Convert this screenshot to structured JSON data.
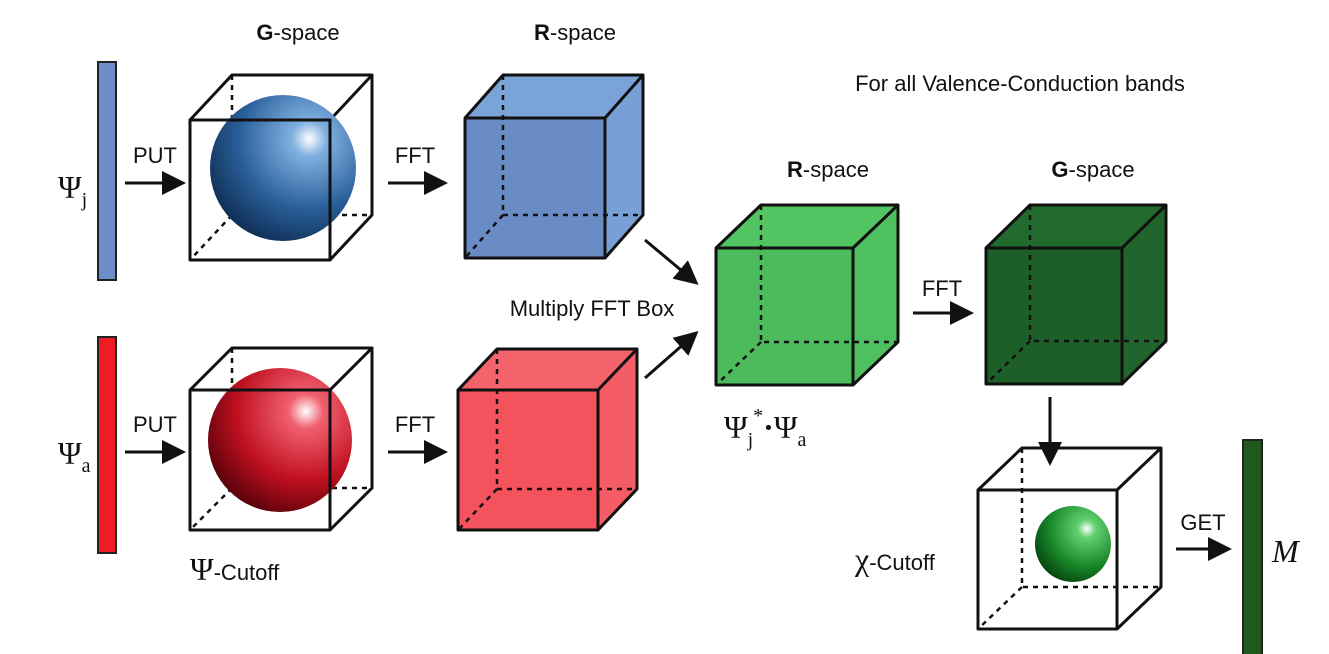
{
  "headers": [
    {
      "bold": "G",
      "rest": "-space"
    },
    {
      "bold": "R",
      "rest": "-space"
    },
    {
      "bold": "R",
      "rest": "-space"
    },
    {
      "bold": "G",
      "rest": "-space"
    }
  ],
  "title": "For all Valence-Conduction bands",
  "wavefunctions": [
    {
      "symbol": "Ψ",
      "sub": "j"
    },
    {
      "symbol": "Ψ",
      "sub": "a"
    }
  ],
  "arrows": [
    "PUT",
    "FFT",
    "PUT",
    "FFT",
    "FFT",
    "GET"
  ],
  "multiply": "Multiply FFT Box",
  "product": {
    "a": "Ψ",
    "a_sub": "j",
    "star": "*",
    "dot": "·",
    "b": "Ψ",
    "b_sub": "a"
  },
  "cutoffs": [
    {
      "symbol": "Ψ",
      "text": "-Cutoff"
    },
    {
      "symbol": "χ",
      "text": "-Cutoff"
    }
  ],
  "result": "M"
}
